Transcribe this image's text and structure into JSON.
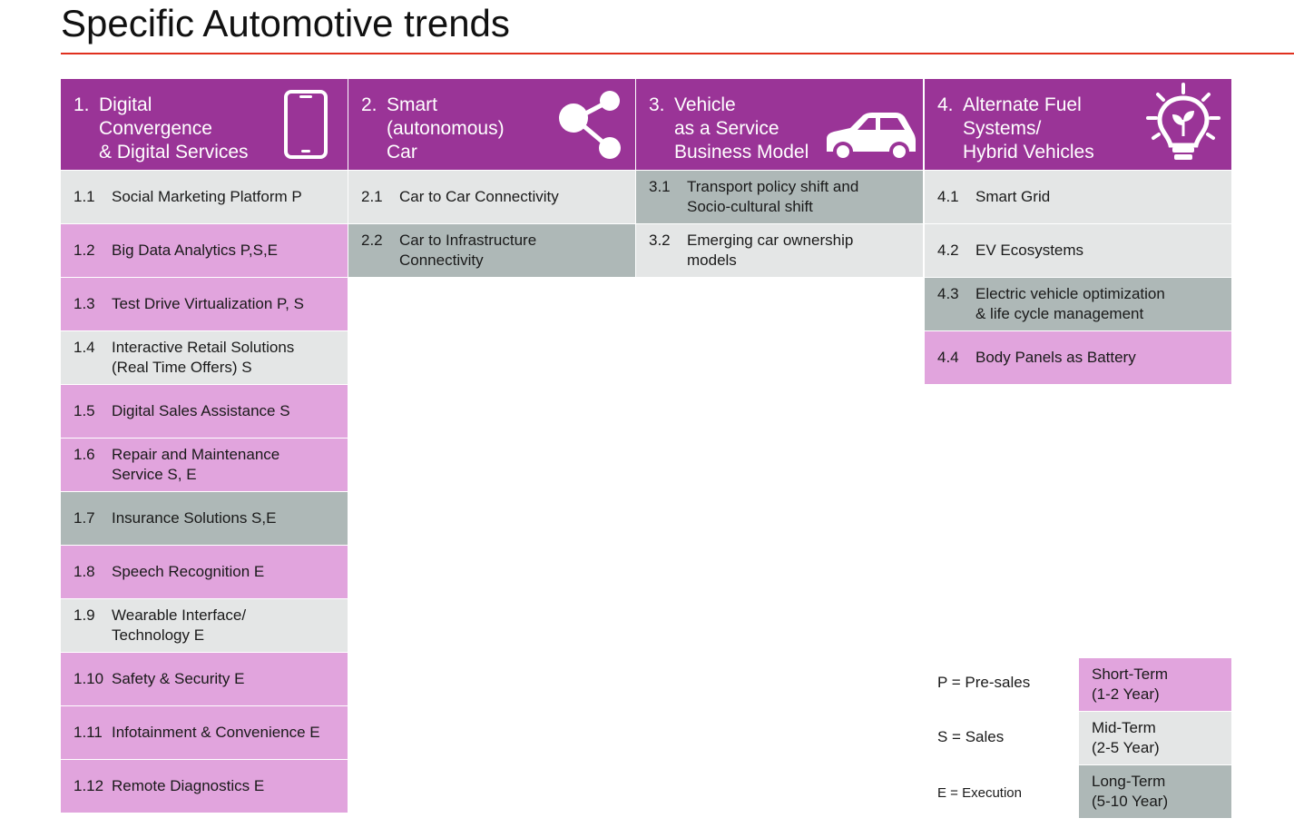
{
  "title": "Specific Automotive trends",
  "colors": {
    "header": "#9a3497",
    "short_term": "#e1a4dd",
    "mid_term": "#e4e6e6",
    "long_term": "#aeb8b7",
    "title_rule": "#e0301e"
  },
  "columns": [
    {
      "number": "1.",
      "header_lines": [
        "Digital",
        "Convergence",
        "& Digital Services"
      ],
      "icon": "smartphone-icon",
      "items": [
        {
          "number": "1.1",
          "lines": [
            "Social Marketing Platform P"
          ],
          "term": "mid"
        },
        {
          "number": "1.2",
          "lines": [
            "Big Data Analytics P,S,E"
          ],
          "term": "short"
        },
        {
          "number": "1.3",
          "lines": [
            "Test Drive Virtualization P, S"
          ],
          "term": "short"
        },
        {
          "number": "1.4",
          "lines": [
            "Interactive Retail Solutions",
            "(Real Time Offers) S"
          ],
          "term": "mid"
        },
        {
          "number": "1.5",
          "lines": [
            "Digital Sales Assistance S"
          ],
          "term": "short"
        },
        {
          "number": "1.6",
          "lines": [
            "Repair and Maintenance",
            "Service S, E"
          ],
          "term": "short"
        },
        {
          "number": "1.7",
          "lines": [
            "Insurance Solutions S,E"
          ],
          "term": "long"
        },
        {
          "number": "1.8",
          "lines": [
            "Speech Recognition E"
          ],
          "term": "short"
        },
        {
          "number": "1.9",
          "lines": [
            "Wearable Interface/",
            "Technology E"
          ],
          "term": "mid"
        },
        {
          "number": "1.10",
          "lines": [
            "Safety & Security E"
          ],
          "term": "short"
        },
        {
          "number": "1.11",
          "lines": [
            "Infotainment & Convenience E"
          ],
          "term": "short"
        },
        {
          "number": "1.12",
          "lines": [
            "Remote Diagnostics E"
          ],
          "term": "short"
        }
      ]
    },
    {
      "number": "2.",
      "header_lines": [
        "Smart",
        "(autonomous)",
        "Car"
      ],
      "icon": "share-icon",
      "items": [
        {
          "number": "2.1",
          "lines": [
            "Car to Car Connectivity"
          ],
          "term": "mid"
        },
        {
          "number": "2.2",
          "lines": [
            "Car to Infrastructure",
            "Connectivity"
          ],
          "term": "long"
        }
      ]
    },
    {
      "number": "3.",
      "header_lines": [
        "Vehicle",
        "as a Service",
        "Business Model"
      ],
      "icon": "car-icon",
      "items": [
        {
          "number": "3.1",
          "lines": [
            "Transport policy shift and",
            "Socio-cultural shift"
          ],
          "term": "long"
        },
        {
          "number": "3.2",
          "lines": [
            "Emerging car ownership",
            "models"
          ],
          "term": "mid"
        }
      ]
    },
    {
      "number": "4.",
      "header_lines": [
        "Alternate Fuel",
        "Systems/",
        "Hybrid Vehicles"
      ],
      "icon": "lightbulb-icon",
      "items": [
        {
          "number": "4.1",
          "lines": [
            "Smart Grid"
          ],
          "term": "mid"
        },
        {
          "number": "4.2",
          "lines": [
            "EV Ecosystems"
          ],
          "term": "mid"
        },
        {
          "number": "4.3",
          "lines": [
            "Electric vehicle optimization",
            "& life cycle management"
          ],
          "term": "long"
        },
        {
          "number": "4.4",
          "lines": [
            "Body Panels as Battery"
          ],
          "term": "short"
        }
      ]
    }
  ],
  "legend": {
    "abbreviations": [
      "P = Pre-sales",
      "S = Sales",
      "E = Execution"
    ],
    "terms": [
      {
        "term": "short",
        "lines": [
          "Short-Term",
          "(1-2 Year)"
        ]
      },
      {
        "term": "mid",
        "lines": [
          "Mid-Term",
          "(2-5 Year)"
        ]
      },
      {
        "term": "long",
        "lines": [
          "Long-Term",
          "(5-10 Year)"
        ]
      }
    ]
  }
}
